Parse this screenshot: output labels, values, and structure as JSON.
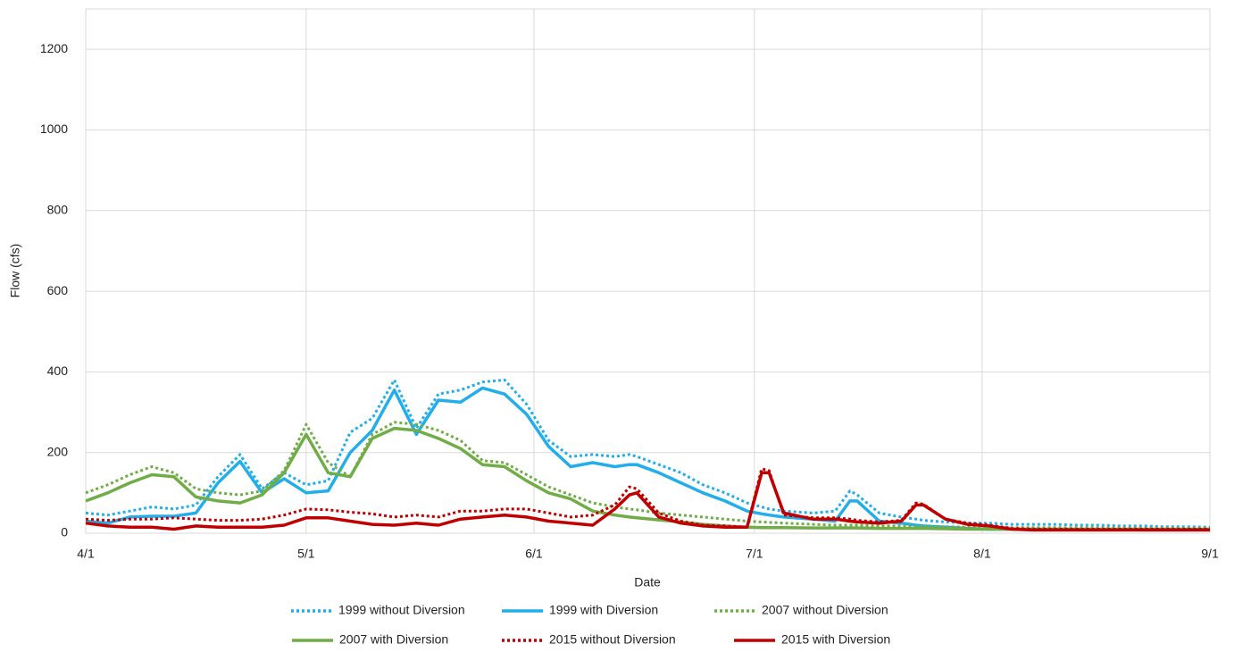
{
  "chart_data": {
    "type": "line",
    "x_label": "Date",
    "y_label": "Flow (cfs)",
    "x": [
      0,
      3,
      6,
      9,
      12,
      15,
      18,
      21,
      24,
      27,
      30,
      33,
      36,
      39,
      42,
      45,
      48,
      51,
      54,
      57,
      60,
      63,
      66,
      69,
      72,
      74,
      75,
      78,
      81,
      84,
      87,
      90,
      92,
      93,
      95,
      99,
      102,
      104,
      105,
      108,
      111,
      113,
      114,
      117,
      120,
      123,
      126,
      129,
      132,
      135,
      138,
      141,
      144,
      147,
      150,
      153
    ],
    "xlim": [
      0,
      153
    ],
    "xticks": [
      {
        "value": 0,
        "label": "4/1"
      },
      {
        "value": 30,
        "label": "5/1"
      },
      {
        "value": 61,
        "label": "6/1"
      },
      {
        "value": 91,
        "label": "7/1"
      },
      {
        "value": 122,
        "label": "8/1"
      },
      {
        "value": 153,
        "label": "9/1"
      }
    ],
    "ylim": [
      0,
      1300
    ],
    "yticks": [
      0,
      200,
      400,
      600,
      800,
      1000,
      1200
    ],
    "grid": true,
    "series": [
      {
        "name": "1999 without Diversion",
        "color": "#21aeea",
        "line_style": "dotted",
        "values": [
          50,
          45,
          55,
          65,
          60,
          70,
          140,
          195,
          110,
          150,
          120,
          130,
          250,
          285,
          380,
          260,
          345,
          355,
          375,
          380,
          320,
          230,
          190,
          195,
          190,
          195,
          190,
          170,
          150,
          120,
          100,
          75,
          65,
          60,
          55,
          50,
          55,
          105,
          95,
          50,
          40,
          35,
          32,
          28,
          25,
          25,
          22,
          22,
          22,
          20,
          20,
          18,
          18,
          16,
          16,
          15
        ]
      },
      {
        "name": "1999 with Diversion",
        "color": "#21aeea",
        "line_style": "solid",
        "values": [
          30,
          25,
          40,
          42,
          42,
          50,
          125,
          178,
          100,
          135,
          100,
          105,
          200,
          255,
          355,
          245,
          330,
          325,
          360,
          345,
          295,
          215,
          165,
          175,
          165,
          170,
          170,
          150,
          125,
          100,
          80,
          55,
          48,
          45,
          40,
          35,
          30,
          80,
          80,
          30,
          25,
          20,
          18,
          15,
          12,
          10,
          10,
          10,
          10,
          9,
          9,
          9,
          8,
          8,
          8,
          8
        ]
      },
      {
        "name": "2007 without Diversion",
        "color": "#70ad47",
        "line_style": "dotted",
        "values": [
          100,
          120,
          145,
          165,
          150,
          110,
          100,
          95,
          105,
          155,
          270,
          175,
          140,
          245,
          275,
          270,
          255,
          230,
          180,
          175,
          145,
          115,
          95,
          75,
          65,
          60,
          58,
          50,
          45,
          40,
          35,
          30,
          28,
          27,
          25,
          22,
          20,
          20,
          20,
          18,
          18,
          17,
          17,
          16,
          15,
          15,
          14,
          14,
          14,
          13,
          13,
          13,
          12,
          12,
          12,
          12
        ]
      },
      {
        "name": "2007 with Diversion",
        "color": "#70ad47",
        "line_style": "solid",
        "values": [
          80,
          100,
          125,
          145,
          140,
          90,
          80,
          75,
          95,
          150,
          245,
          150,
          140,
          235,
          260,
          255,
          235,
          210,
          170,
          165,
          130,
          100,
          85,
          55,
          45,
          40,
          38,
          33,
          28,
          22,
          18,
          15,
          14,
          14,
          14,
          13,
          13,
          13,
          13,
          12,
          12,
          12,
          12,
          11,
          10,
          10,
          10,
          10,
          10,
          10,
          10,
          10,
          10,
          10,
          10,
          10
        ]
      },
      {
        "name": "2015 without Diversion",
        "color": "#c00000",
        "line_style": "dotted",
        "values": [
          35,
          32,
          35,
          35,
          38,
          35,
          32,
          32,
          35,
          45,
          60,
          58,
          52,
          48,
          40,
          45,
          40,
          55,
          55,
          60,
          60,
          50,
          40,
          45,
          70,
          115,
          110,
          50,
          30,
          20,
          18,
          15,
          160,
          155,
          45,
          38,
          38,
          35,
          32,
          28,
          32,
          75,
          72,
          35,
          25,
          20,
          12,
          10,
          10,
          10,
          10,
          10,
          10,
          10,
          10,
          10
        ]
      },
      {
        "name": "2015 with Diversion",
        "color": "#c00000",
        "line_style": "solid",
        "values": [
          25,
          18,
          15,
          15,
          10,
          18,
          15,
          15,
          15,
          20,
          38,
          38,
          30,
          22,
          20,
          25,
          20,
          35,
          40,
          45,
          40,
          30,
          25,
          20,
          60,
          95,
          100,
          40,
          25,
          18,
          15,
          15,
          150,
          150,
          50,
          35,
          35,
          30,
          28,
          25,
          30,
          70,
          70,
          35,
          22,
          18,
          10,
          8,
          8,
          8,
          8,
          8,
          8,
          8,
          8,
          8
        ]
      }
    ]
  }
}
